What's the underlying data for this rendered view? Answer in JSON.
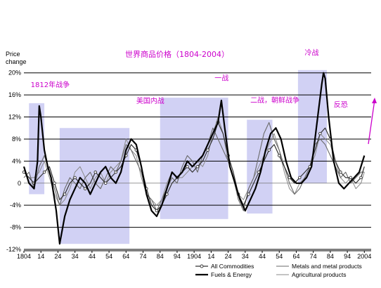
{
  "chart_data": {
    "type": "line",
    "title": "世界商品价格（1804-2004）",
    "ylabel_line1": "Price",
    "ylabel_line2": "change",
    "xlabel": "",
    "ylim": [
      -12,
      22
    ],
    "xlim": [
      1804,
      2008
    ],
    "y_ticks": [
      20,
      16,
      12,
      8,
      4,
      0,
      -4,
      -8,
      -12
    ],
    "y_tick_labels": [
      "20%",
      "16%",
      "12%",
      "8%",
      "4%",
      "0",
      "-4%",
      "-8%",
      "-12%"
    ],
    "x_ticks": [
      1804,
      1814,
      1824,
      1834,
      1844,
      1854,
      1864,
      1874,
      1884,
      1894,
      1904,
      1914,
      1924,
      1934,
      1944,
      1954,
      1964,
      1974,
      1984,
      1994,
      2004
    ],
    "x_tick_labels": [
      "1804",
      "14",
      "24",
      "34",
      "44",
      "54",
      "64",
      "74",
      "84",
      "94",
      "1904",
      "14",
      "24",
      "34",
      "44",
      "54",
      "64",
      "74",
      "84",
      "94",
      "2004"
    ],
    "grid": true,
    "legend_position": "bottom-right",
    "colors": {
      "all_commodities": "#333333",
      "fuels": "#000000",
      "metals": "#6a6a6a",
      "agricultural": "#8a8a8a",
      "shade": "#c9c9f2",
      "annotation": "#cc00cc"
    },
    "shaded_periods": [
      {
        "start": 1807,
        "end": 1816,
        "ymin": -2,
        "ymax": 14.5
      },
      {
        "start": 1825,
        "end": 1866,
        "ymin": -11,
        "ymax": 10
      },
      {
        "start": 1884,
        "end": 1924,
        "ymin": -6.5,
        "ymax": 15.5
      },
      {
        "start": 1935,
        "end": 1950,
        "ymin": -5.5,
        "ymax": 11.5
      },
      {
        "start": 1965,
        "end": 1982,
        "ymin": 0,
        "ymax": 20.5
      }
    ],
    "annotations": [
      {
        "text": "1812年战争",
        "x": 1808,
        "y": 17.4
      },
      {
        "text": "美国内战",
        "x": 1870,
        "y": 14.5
      },
      {
        "text": "一战",
        "x": 1916,
        "y": 18.6
      },
      {
        "text": "二战，朝鲜战争",
        "x": 1937,
        "y": 14.6
      },
      {
        "text": "冷战",
        "x": 1969,
        "y": 23.2
      },
      {
        "text": "反恐",
        "x": 1986,
        "y": 13.8
      }
    ],
    "series": [
      {
        "name": "All Commodities",
        "x": [
          1804,
          1807,
          1810,
          1813,
          1816,
          1819,
          1822,
          1825,
          1828,
          1831,
          1834,
          1837,
          1840,
          1843,
          1846,
          1849,
          1852,
          1855,
          1858,
          1861,
          1864,
          1867,
          1870,
          1873,
          1876,
          1879,
          1882,
          1885,
          1888,
          1891,
          1894,
          1897,
          1900,
          1903,
          1906,
          1909,
          1912,
          1915,
          1918,
          1921,
          1924,
          1927,
          1930,
          1933,
          1936,
          1939,
          1942,
          1945,
          1948,
          1951,
          1954,
          1957,
          1960,
          1963,
          1966,
          1969,
          1972,
          1975,
          1978,
          1981,
          1984,
          1987,
          1990,
          1993,
          1996,
          1999,
          2002,
          2004
        ],
        "y": [
          2,
          1,
          0,
          1,
          2,
          3,
          0,
          -3,
          -2,
          0,
          1,
          0,
          -1,
          0,
          2,
          1,
          0,
          1,
          2,
          3,
          5,
          7,
          6,
          3,
          -1,
          -4,
          -5,
          -4,
          -2,
          0,
          1,
          2,
          3,
          2,
          3,
          4,
          6,
          8,
          11,
          9,
          5,
          2,
          -2,
          -4,
          -2,
          0,
          2,
          4,
          6,
          7,
          5,
          3,
          1,
          0,
          1,
          2,
          3,
          6,
          9,
          10,
          8,
          4,
          2,
          1,
          1,
          0,
          1,
          3
        ]
      },
      {
        "name": "Fuels & Energy",
        "x": [
          1804,
          1807,
          1810,
          1812,
          1813,
          1814,
          1816,
          1818,
          1820,
          1823,
          1825,
          1828,
          1831,
          1834,
          1837,
          1840,
          1843,
          1846,
          1849,
          1852,
          1855,
          1858,
          1861,
          1864,
          1867,
          1870,
          1873,
          1876,
          1879,
          1882,
          1885,
          1888,
          1891,
          1894,
          1897,
          1900,
          1903,
          1906,
          1909,
          1912,
          1915,
          1918,
          1920,
          1922,
          1925,
          1928,
          1931,
          1934,
          1937,
          1940,
          1943,
          1946,
          1949,
          1952,
          1955,
          1958,
          1961,
          1964,
          1967,
          1970,
          1973,
          1975,
          1977,
          1979,
          1980,
          1981,
          1983,
          1986,
          1989,
          1992,
          1995,
          1998,
          2001,
          2004
        ],
        "y": [
          3,
          0,
          -1,
          4,
          14,
          12,
          6,
          3,
          1,
          -5,
          -11,
          -6,
          -3,
          -1,
          1,
          0,
          -2,
          0,
          2,
          3,
          1,
          0,
          2,
          6,
          8,
          7,
          3,
          -2,
          -5,
          -6,
          -4,
          -1,
          2,
          1,
          2,
          4,
          3,
          4,
          5,
          7,
          9,
          11,
          15,
          10,
          3,
          0,
          -3,
          -5,
          -3,
          -1,
          2,
          6,
          9,
          10,
          8,
          4,
          1,
          0,
          0,
          1,
          3,
          8,
          13,
          18,
          20,
          19,
          12,
          4,
          0,
          -1,
          0,
          1,
          2,
          5
        ]
      },
      {
        "name": "Metals and metal products",
        "x": [
          1804,
          1807,
          1810,
          1813,
          1816,
          1819,
          1822,
          1825,
          1828,
          1831,
          1834,
          1837,
          1840,
          1843,
          1846,
          1849,
          1852,
          1855,
          1858,
          1861,
          1864,
          1867,
          1870,
          1873,
          1876,
          1879,
          1882,
          1885,
          1888,
          1891,
          1894,
          1897,
          1900,
          1903,
          1906,
          1909,
          1912,
          1915,
          1918,
          1921,
          1924,
          1927,
          1930,
          1933,
          1936,
          1939,
          1942,
          1945,
          1948,
          1951,
          1954,
          1957,
          1960,
          1963,
          1966,
          1969,
          1972,
          1975,
          1978,
          1981,
          1984,
          1987,
          1990,
          1993,
          1996,
          1999,
          2002,
          2004
        ],
        "y": [
          1,
          2,
          -1,
          3,
          5,
          2,
          -1,
          -4,
          -1,
          1,
          0,
          -1,
          1,
          2,
          0,
          -1,
          1,
          3,
          2,
          4,
          7,
          6,
          4,
          2,
          -2,
          -3,
          -5,
          -3,
          -1,
          1,
          0,
          3,
          5,
          4,
          2,
          5,
          7,
          10,
          8,
          6,
          4,
          1,
          -3,
          -5,
          -1,
          1,
          5,
          9,
          11,
          8,
          6,
          3,
          0,
          -2,
          -1,
          1,
          3,
          7,
          8,
          7,
          5,
          3,
          1,
          2,
          0,
          1,
          2,
          2
        ]
      },
      {
        "name": "Agricultural products",
        "x": [
          1804,
          1807,
          1810,
          1813,
          1816,
          1819,
          1822,
          1825,
          1828,
          1831,
          1834,
          1837,
          1840,
          1843,
          1846,
          1849,
          1852,
          1855,
          1858,
          1861,
          1864,
          1867,
          1870,
          1873,
          1876,
          1879,
          1882,
          1885,
          1888,
          1891,
          1894,
          1897,
          1900,
          1903,
          1906,
          1909,
          1912,
          1915,
          1918,
          1921,
          1924,
          1927,
          1930,
          1933,
          1936,
          1939,
          1942,
          1945,
          1948,
          1951,
          1954,
          1957,
          1960,
          1963,
          1966,
          1969,
          1972,
          1975,
          1978,
          1981,
          1984,
          1987,
          1990,
          1993,
          1996,
          1999,
          2002,
          2004
        ],
        "y": [
          2,
          1,
          1,
          2,
          4,
          1,
          -2,
          -4,
          -3,
          -1,
          2,
          3,
          1,
          -1,
          1,
          2,
          0,
          2,
          3,
          4,
          8,
          6,
          5,
          1,
          -2,
          -3,
          -4,
          -3,
          0,
          2,
          1,
          1,
          2,
          3,
          4,
          3,
          5,
          9,
          12,
          9,
          4,
          1,
          -2,
          -3,
          -1,
          1,
          3,
          5,
          7,
          9,
          6,
          2,
          -1,
          -2,
          0,
          1,
          3,
          5,
          9,
          8,
          7,
          4,
          1,
          0,
          1,
          -1,
          0,
          2
        ]
      }
    ]
  }
}
